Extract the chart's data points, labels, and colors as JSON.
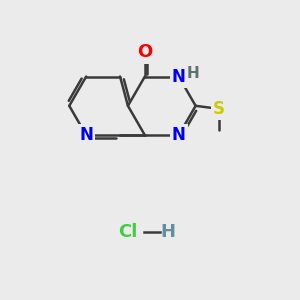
{
  "bg_color": "#ebebeb",
  "bond_color": "#3a3a3a",
  "bond_width": 1.8,
  "atom_colors": {
    "O": "#ff0000",
    "N": "#0000ee",
    "NH": "#607070",
    "H": "#607070",
    "S": "#cccc00",
    "C": "#3a3a3a",
    "Cl": "#44cc44",
    "Hcl": "#6090a0"
  },
  "font_size": 11,
  "hcl_font_size": 12
}
